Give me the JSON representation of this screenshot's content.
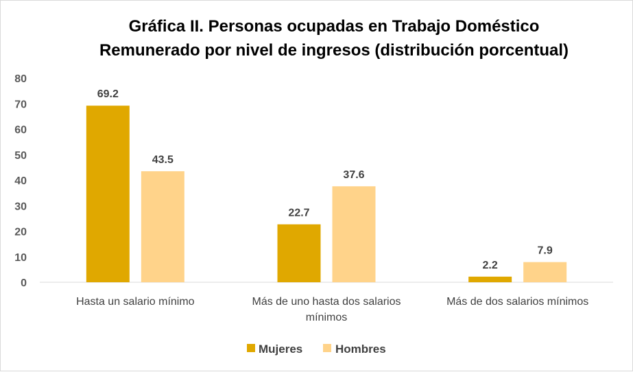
{
  "chart_data": {
    "type": "bar",
    "title_lines": [
      "Gráfica  II. Personas ocupadas en  Trabajo Doméstico",
      "Remunerado por nivel de ingresos (distribución porcentual)"
    ],
    "categories": [
      [
        "Hasta un salario mínimo"
      ],
      [
        "Más de uno hasta dos salarios",
        "mínimos"
      ],
      [
        "Más de dos salarios mínimos"
      ]
    ],
    "series": [
      {
        "name": "Mujeres",
        "values": [
          69.2,
          22.7,
          2.2
        ],
        "labels": [
          "69.2",
          "22.7",
          "2.2"
        ],
        "color": "#e0a800"
      },
      {
        "name": "Hombres",
        "values": [
          43.5,
          37.6,
          7.9
        ],
        "labels": [
          "43.5",
          "37.6",
          "7.9"
        ],
        "color": "#ffd38a"
      }
    ],
    "ylim": [
      0,
      80
    ],
    "yticks": [
      "0",
      "10",
      "20",
      "30",
      "40",
      "50",
      "60",
      "70",
      "80"
    ],
    "xlabel": "",
    "ylabel": "",
    "grid": false,
    "legend_position": "bottom"
  }
}
